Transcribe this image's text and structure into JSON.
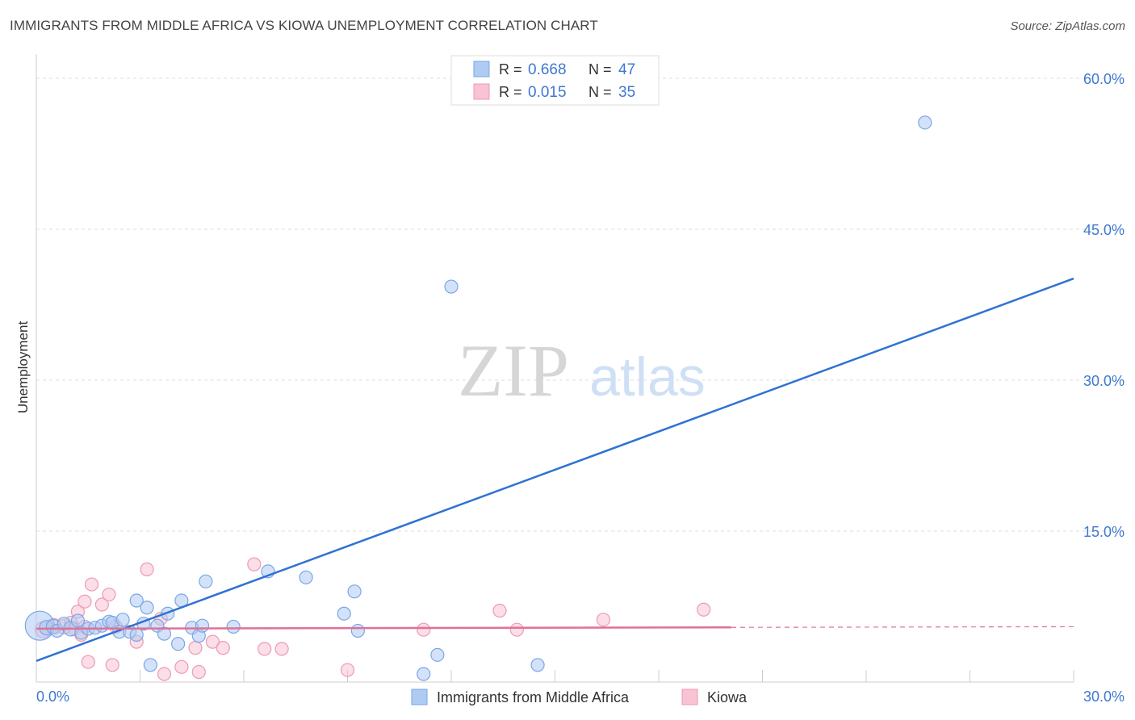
{
  "header": {
    "title": "IMMIGRANTS FROM MIDDLE AFRICA VS KIOWA UNEMPLOYMENT CORRELATION CHART",
    "source": "Source: ZipAtlas.com"
  },
  "watermark": {
    "zip": "ZIP",
    "atlas": "atlas"
  },
  "colors": {
    "blue_fill": "#aecbf3",
    "blue_stroke": "#7aa6e6",
    "blue_line": "#2f72d3",
    "pink_fill": "#f8c3d3",
    "pink_stroke": "#ee9ab4",
    "pink_line": "#e07196",
    "tick_text": "#3f78d0",
    "grid": "#dedede"
  },
  "legend": {
    "r_label": "R =",
    "n_label": "N =",
    "series": [
      {
        "r": "0.668",
        "n": "47"
      },
      {
        "r": "0.015",
        "n": "35"
      }
    ]
  },
  "bottom_legend": {
    "items": [
      "Immigrants from Middle Africa",
      "Kiowa"
    ]
  },
  "chart_data": {
    "type": "scatter",
    "title": "IMMIGRANTS FROM MIDDLE AFRICA VS KIOWA UNEMPLOYMENT CORRELATION CHART",
    "xlabel": "",
    "ylabel": "Unemployment",
    "xlim": [
      0,
      30
    ],
    "ylim": [
      0,
      62
    ],
    "x_tick_labels": [
      {
        "value": 0,
        "label": "0.0%"
      },
      {
        "value": 30,
        "label": "30.0%"
      }
    ],
    "y_ticks": [
      {
        "value": 15,
        "label": "15.0%"
      },
      {
        "value": 30,
        "label": "30.0%"
      },
      {
        "value": 45,
        "label": "45.0%"
      },
      {
        "value": 60,
        "label": "60.0%"
      }
    ],
    "x_minor_ticks": [
      3,
      6,
      9,
      12,
      15,
      18,
      21,
      24,
      27,
      30
    ],
    "series": [
      {
        "name": "Immigrants from Middle Africa",
        "color": "blue",
        "r": 0.668,
        "n": 47,
        "trend": {
          "x": [
            0,
            30
          ],
          "y": [
            2.1,
            40.1
          ],
          "dashed_from": null
        },
        "points": [
          [
            0.1,
            5.6,
            18
          ],
          [
            0.3,
            5.4,
            9
          ],
          [
            0.5,
            5.5,
            9
          ],
          [
            0.6,
            5.1,
            8
          ],
          [
            0.8,
            5.8,
            8
          ],
          [
            1.0,
            5.3,
            9
          ],
          [
            1.2,
            6.1,
            8
          ],
          [
            1.3,
            4.9,
            8
          ],
          [
            1.5,
            5.3,
            8
          ],
          [
            1.7,
            5.4,
            8
          ],
          [
            1.9,
            5.6,
            8
          ],
          [
            2.1,
            6.0,
            8
          ],
          [
            2.2,
            5.9,
            8
          ],
          [
            2.4,
            5.0,
            8
          ],
          [
            2.5,
            6.2,
            8
          ],
          [
            2.7,
            5.0,
            8
          ],
          [
            2.9,
            4.7,
            8
          ],
          [
            2.9,
            8.1,
            8
          ],
          [
            3.1,
            5.8,
            8
          ],
          [
            3.2,
            7.4,
            8
          ],
          [
            3.3,
            1.7,
            8
          ],
          [
            3.5,
            5.6,
            8
          ],
          [
            3.7,
            4.8,
            8
          ],
          [
            3.8,
            6.8,
            8
          ],
          [
            4.1,
            3.8,
            8
          ],
          [
            4.2,
            8.1,
            8
          ],
          [
            4.5,
            5.4,
            8
          ],
          [
            4.7,
            4.6,
            8
          ],
          [
            4.8,
            5.6,
            8
          ],
          [
            4.9,
            10.0,
            8
          ],
          [
            5.7,
            5.5,
            8
          ],
          [
            6.7,
            11.0,
            8
          ],
          [
            7.8,
            10.4,
            8
          ],
          [
            8.9,
            6.8,
            8
          ],
          [
            9.2,
            9.0,
            8
          ],
          [
            9.3,
            5.1,
            8
          ],
          [
            11.2,
            0.8,
            8
          ],
          [
            11.6,
            2.7,
            8
          ],
          [
            12.0,
            39.3,
            8
          ],
          [
            14.5,
            1.7,
            8
          ],
          [
            25.7,
            55.6,
            8
          ]
        ]
      },
      {
        "name": "Kiowa",
        "color": "pink",
        "r": 0.015,
        "n": 35,
        "trend": {
          "x": [
            0,
            30
          ],
          "y": [
            5.3,
            5.5
          ],
          "dashed_from": 20.1
        },
        "points": [
          [
            0.2,
            5.2,
            10
          ],
          [
            0.5,
            5.6,
            9
          ],
          [
            0.8,
            5.5,
            9
          ],
          [
            1.0,
            5.9,
            8
          ],
          [
            1.1,
            5.3,
            8
          ],
          [
            1.2,
            7.0,
            8
          ],
          [
            1.3,
            4.7,
            8
          ],
          [
            1.4,
            5.5,
            8
          ],
          [
            1.4,
            8.0,
            8
          ],
          [
            1.5,
            2.0,
            8
          ],
          [
            1.6,
            9.7,
            8
          ],
          [
            1.9,
            7.7,
            8
          ],
          [
            2.1,
            8.7,
            8
          ],
          [
            2.2,
            1.7,
            8
          ],
          [
            2.3,
            5.5,
            8
          ],
          [
            2.9,
            4.0,
            8
          ],
          [
            3.2,
            11.2,
            8
          ],
          [
            3.6,
            6.3,
            8
          ],
          [
            3.7,
            0.8,
            8
          ],
          [
            4.2,
            1.5,
            8
          ],
          [
            4.6,
            3.4,
            8
          ],
          [
            4.7,
            1.0,
            8
          ],
          [
            5.1,
            4.0,
            8
          ],
          [
            5.4,
            3.4,
            8
          ],
          [
            6.3,
            11.7,
            8
          ],
          [
            6.6,
            3.3,
            8
          ],
          [
            7.1,
            3.3,
            8
          ],
          [
            9.0,
            1.2,
            8
          ],
          [
            11.2,
            5.2,
            8
          ],
          [
            13.4,
            7.1,
            8
          ],
          [
            13.9,
            5.2,
            8
          ],
          [
            16.4,
            6.2,
            8
          ],
          [
            19.3,
            7.2,
            8
          ]
        ]
      }
    ]
  }
}
